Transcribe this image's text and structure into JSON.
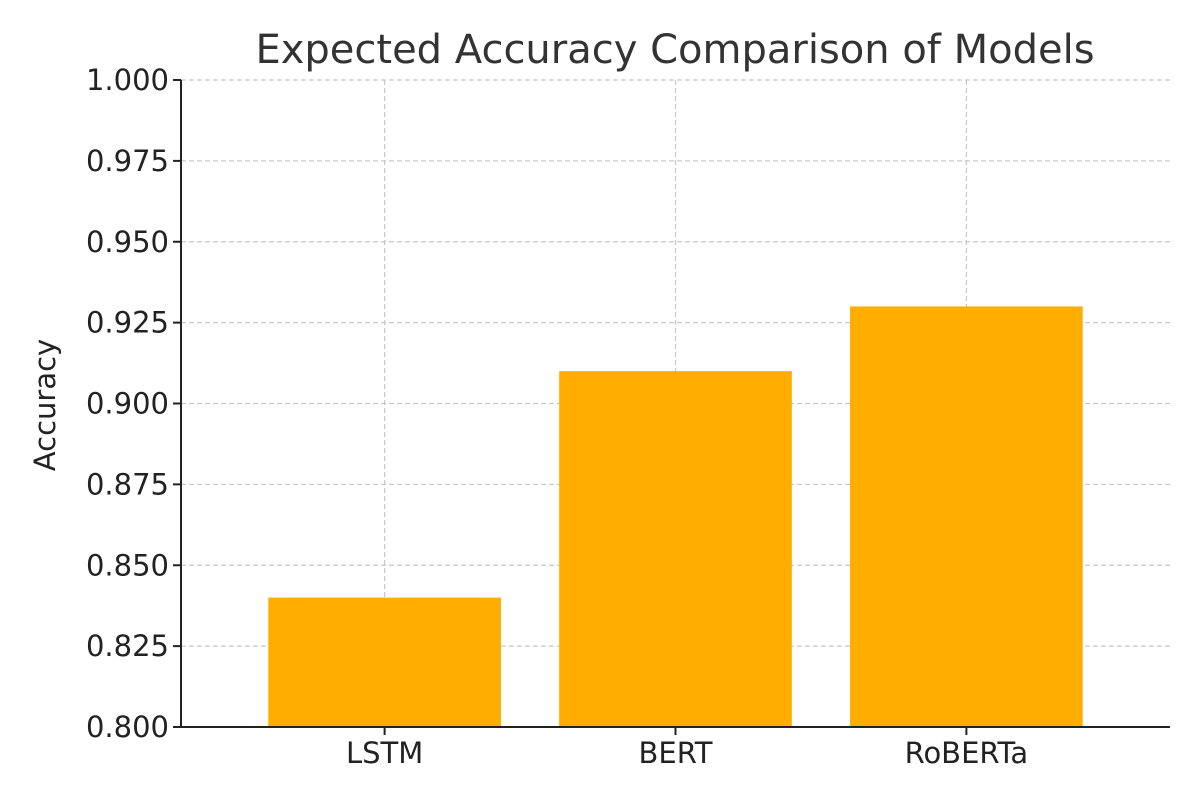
{
  "chart_data": {
    "type": "bar",
    "title": "Expected Accuracy Comparison of Models",
    "xlabel": "",
    "ylabel": "Accuracy",
    "categories": [
      "LSTM",
      "BERT",
      "RoBERTa"
    ],
    "values": [
      0.84,
      0.91,
      0.93
    ],
    "ylim": [
      0.8,
      1.0
    ],
    "yticks": [
      "0.800",
      "0.825",
      "0.850",
      "0.875",
      "0.900",
      "0.925",
      "0.950",
      "0.975",
      "1.000"
    ],
    "grid": true,
    "bar_color": "#ffae00"
  }
}
